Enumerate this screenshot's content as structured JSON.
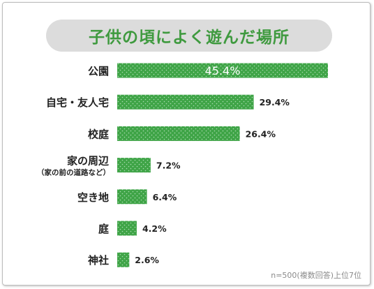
{
  "chart_data": {
    "type": "bar",
    "orientation": "horizontal",
    "title": "子供の頃によく遊んだ場所",
    "categories": [
      "公園",
      "自宅・友人宅",
      "校庭",
      "家の周辺",
      "空き地",
      "庭",
      "神社"
    ],
    "category_sublabels": [
      "",
      "",
      "",
      "（家の前の道路など）",
      "",
      "",
      ""
    ],
    "values": [
      45.4,
      29.4,
      26.4,
      7.2,
      6.4,
      4.2,
      2.6
    ],
    "value_labels": [
      "45.4%",
      "29.4%",
      "26.4%",
      "7.2%",
      "6.4%",
      "4.2%",
      "2.6%"
    ],
    "unit": "%",
    "xlim": [
      0,
      45.4
    ],
    "grid": false,
    "bar_color": "#3fa447",
    "title_color": "#3f9a3f",
    "note": "n=500(複数回答)上位7位"
  }
}
